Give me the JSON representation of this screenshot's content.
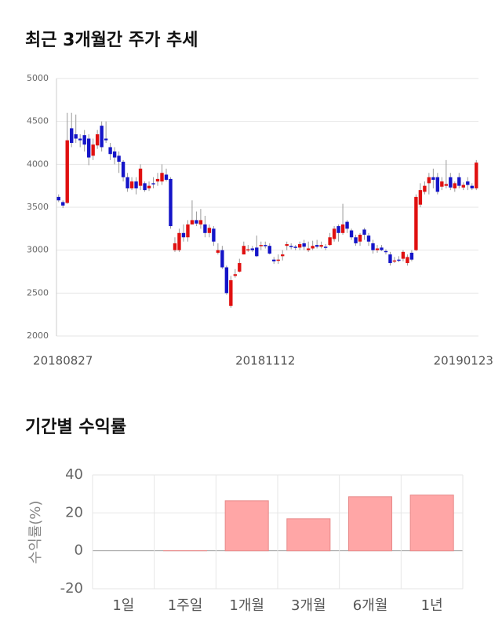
{
  "chart_data": [
    {
      "type": "candlestick",
      "title": "최근 3개월간 주가 추세",
      "categories": [
        null,
        "20180827",
        null,
        null,
        null,
        null,
        null,
        null,
        null,
        null,
        null,
        null,
        null,
        null,
        null,
        null,
        null,
        null,
        null,
        null,
        null,
        null,
        null,
        null,
        null,
        null,
        null,
        null,
        null,
        null,
        null,
        null,
        null,
        null,
        null,
        null,
        null,
        null,
        null,
        null,
        null,
        null,
        null,
        null,
        null,
        null,
        null,
        null,
        "20181112",
        null,
        null,
        null,
        null,
        null,
        null,
        null,
        null,
        null,
        null,
        null,
        null,
        null,
        null,
        null,
        null,
        null,
        null,
        null,
        null,
        null,
        null,
        null,
        null,
        null,
        null,
        null,
        null,
        null,
        null,
        null,
        null,
        null,
        null,
        null,
        null,
        null,
        null,
        null,
        null,
        null,
        null,
        null,
        null,
        null,
        "20190123",
        null,
        null,
        null
      ],
      "open": [
        3620,
        3560,
        3550,
        4420,
        4350,
        4300,
        4340,
        4300,
        4100,
        4220,
        4450,
        4300,
        4200,
        4150,
        4100,
        4030,
        3850,
        3720,
        3800,
        3750,
        3780,
        3720,
        3780,
        3800,
        3800,
        3880,
        3830,
        3000,
        3000,
        3200,
        3150,
        3300,
        3350,
        3300,
        3300,
        3200,
        3250,
        2970,
        3000,
        2800,
        2350,
        2700,
        2750,
        2950,
        3000,
        3020,
        3030,
        3050,
        3060,
        3050,
        2890,
        2880,
        2930,
        3050,
        3050,
        3040,
        3030,
        3080,
        3000,
        3020,
        3060,
        3040,
        3040,
        3060,
        3130,
        3280,
        3200,
        3330,
        3230,
        3150,
        3100,
        3240,
        3170,
        3080,
        3000,
        3030,
        2990,
        2950,
        2870,
        2890,
        2900,
        2850,
        2970,
        3000,
        3530,
        3680,
        3780,
        3850,
        3850,
        3740,
        3750,
        3850,
        3720,
        3850,
        3730,
        3800,
        3750,
        3720
      ],
      "high": [
        3650,
        3580,
        4600,
        4600,
        4580,
        4350,
        4400,
        4350,
        4300,
        4400,
        4500,
        4500,
        4250,
        4200,
        4150,
        4050,
        3900,
        3850,
        3850,
        4000,
        3800,
        3800,
        3850,
        3900,
        4000,
        3950,
        3850,
        3150,
        3250,
        3300,
        3350,
        3580,
        3450,
        3480,
        3400,
        3300,
        3280,
        3080,
        3050,
        2820,
        2700,
        2780,
        2900,
        3100,
        3060,
        3050,
        3170,
        3100,
        3100,
        3080,
        2920,
        2950,
        3000,
        3100,
        3080,
        3060,
        3100,
        3120,
        3100,
        3110,
        3120,
        3100,
        3070,
        3200,
        3280,
        3300,
        3540,
        3350,
        3250,
        3180,
        3200,
        3260,
        3200,
        3120,
        3060,
        3060,
        3010,
        2980,
        2920,
        2930,
        3000,
        2950,
        3000,
        3650,
        3780,
        3800,
        3900,
        3950,
        3900,
        3850,
        4050,
        3900,
        3800,
        3900,
        3790,
        3850,
        3780,
        4050
      ],
      "low": [
        3560,
        3490,
        3540,
        4200,
        4250,
        4200,
        4150,
        3990,
        4050,
        4180,
        4150,
        4250,
        4050,
        4000,
        3900,
        3800,
        3680,
        3700,
        3650,
        3700,
        3680,
        3690,
        3720,
        3750,
        3760,
        3800,
        3250,
        2980,
        2980,
        3100,
        3100,
        3300,
        3280,
        3250,
        3150,
        3150,
        3050,
        2950,
        2780,
        2480,
        2330,
        2680,
        2740,
        2950,
        2980,
        2980,
        2920,
        3000,
        3020,
        2950,
        2840,
        2840,
        2880,
        3000,
        3010,
        3000,
        3000,
        3000,
        2980,
        3000,
        3020,
        3020,
        3000,
        3050,
        3100,
        3100,
        3180,
        3200,
        3120,
        3050,
        3050,
        3120,
        3050,
        2960,
        2970,
        2990,
        2950,
        2820,
        2850,
        2860,
        2870,
        2820,
        2870,
        2990,
        3500,
        3650,
        3650,
        3720,
        3650,
        3700,
        3720,
        3700,
        3680,
        3720,
        3700,
        3700,
        3700,
        3700
      ],
      "close": [
        3580,
        3520,
        4280,
        4250,
        4300,
        4280,
        4230,
        4080,
        4230,
        4350,
        4200,
        4280,
        4120,
        4080,
        4030,
        3850,
        3720,
        3800,
        3720,
        3950,
        3700,
        3750,
        3770,
        3830,
        3900,
        3820,
        3280,
        3080,
        3200,
        3150,
        3300,
        3350,
        3310,
        3350,
        3200,
        3260,
        3100,
        3000,
        2800,
        2500,
        2650,
        2720,
        2850,
        3050,
        3010,
        3000,
        2930,
        3060,
        3050,
        2960,
        2870,
        2890,
        2950,
        3070,
        3040,
        3030,
        3070,
        3040,
        3020,
        3050,
        3040,
        3060,
        3030,
        3150,
        3250,
        3200,
        3300,
        3250,
        3150,
        3080,
        3180,
        3180,
        3100,
        3000,
        3020,
        3000,
        2980,
        2850,
        2880,
        2880,
        2980,
        2920,
        2890,
        3620,
        3700,
        3750,
        3850,
        3820,
        3680,
        3800,
        3770,
        3730,
        3780,
        3750,
        3760,
        3760,
        3720,
        4020
      ],
      "up_color": "#e01010",
      "down_color": "#1414c8",
      "wick_color": "#999999",
      "ylim": [
        2000,
        5000
      ],
      "yticks": [
        2000,
        2500,
        3000,
        3500,
        4000,
        4500,
        5000
      ],
      "grid": true
    },
    {
      "type": "bar",
      "title": "기간별 수익률",
      "y_label": "수익률(%)",
      "categories": [
        "1일",
        "1주일",
        "1개월",
        "3개월",
        "6개월",
        "1년"
      ],
      "values": [
        0,
        0.1,
        26.4,
        16.9,
        28.5,
        29.4
      ],
      "color": "#ffa6a6",
      "ylim": [
        -20,
        40
      ],
      "yticks": [
        -20,
        0,
        20,
        40
      ],
      "grid": true
    }
  ]
}
